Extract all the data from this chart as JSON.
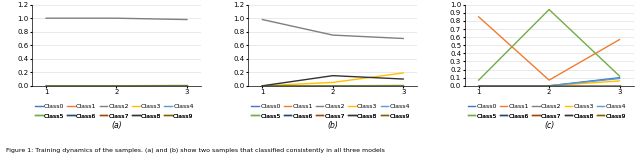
{
  "subplot_a": {
    "x": [
      1,
      2,
      3
    ],
    "lines": [
      {
        "label": "Class0",
        "color": "#4472C4",
        "values": [
          0.0,
          0.0,
          0.0
        ]
      },
      {
        "label": "Class1",
        "color": "#ED7D31",
        "values": [
          0.0,
          0.0,
          0.0
        ]
      },
      {
        "label": "Class2",
        "color": "#7F7F7F",
        "values": [
          1.0,
          1.0,
          0.98
        ]
      },
      {
        "label": "Class3",
        "color": "#FFC000",
        "values": [
          0.0,
          0.0,
          0.0
        ]
      },
      {
        "label": "Class4",
        "color": "#5B9BD5",
        "values": [
          0.0,
          0.0,
          0.0
        ]
      },
      {
        "label": "Class5",
        "color": "#70AD47",
        "values": [
          0.0,
          0.0,
          0.005
        ]
      },
      {
        "label": "Class6",
        "color": "#264478",
        "values": [
          0.0,
          0.0,
          0.0
        ]
      },
      {
        "label": "Class7",
        "color": "#9E480E",
        "values": [
          0.0,
          0.0,
          0.0
        ]
      },
      {
        "label": "Class8",
        "color": "#333333",
        "values": [
          0.0,
          0.0,
          0.0
        ]
      },
      {
        "label": "Class9",
        "color": "#806000",
        "values": [
          0.0,
          0.0,
          0.0
        ]
      }
    ],
    "ylim": [
      0.0,
      1.2
    ],
    "yticks": [
      0.0,
      0.2,
      0.4,
      0.6,
      0.8,
      1.0,
      1.2
    ],
    "xlabel": "(a)"
  },
  "subplot_b": {
    "x": [
      1,
      2,
      3
    ],
    "lines": [
      {
        "label": "Class0",
        "color": "#4472C4",
        "values": [
          0.0,
          0.0,
          0.0
        ]
      },
      {
        "label": "Class1",
        "color": "#ED7D31",
        "values": [
          0.0,
          0.0,
          0.0
        ]
      },
      {
        "label": "Class2",
        "color": "#7F7F7F",
        "values": [
          0.98,
          0.75,
          0.7
        ]
      },
      {
        "label": "Class3",
        "color": "#FFC000",
        "values": [
          0.0,
          0.05,
          0.19
        ]
      },
      {
        "label": "Class4",
        "color": "#5B9BD5",
        "values": [
          0.0,
          0.0,
          0.0
        ]
      },
      {
        "label": "Class5",
        "color": "#70AD47",
        "values": [
          0.0,
          0.0,
          0.005
        ]
      },
      {
        "label": "Class6",
        "color": "#264478",
        "values": [
          0.0,
          0.0,
          0.0
        ]
      },
      {
        "label": "Class7",
        "color": "#9E480E",
        "values": [
          0.0,
          0.0,
          0.0
        ]
      },
      {
        "label": "Class8",
        "color": "#333333",
        "values": [
          0.0,
          0.15,
          0.1
        ]
      },
      {
        "label": "Class9",
        "color": "#806000",
        "values": [
          0.0,
          0.0,
          0.0
        ]
      }
    ],
    "ylim": [
      0.0,
      1.2
    ],
    "yticks": [
      0.0,
      0.2,
      0.4,
      0.6,
      0.8,
      1.0,
      1.2
    ],
    "xlabel": "(b)"
  },
  "subplot_c": {
    "x": [
      1,
      2,
      3
    ],
    "lines": [
      {
        "label": "Class0",
        "color": "#4472C4",
        "values": [
          0.0,
          0.0,
          0.1
        ]
      },
      {
        "label": "Class1",
        "color": "#ED7D31",
        "values": [
          0.85,
          0.07,
          0.57
        ]
      },
      {
        "label": "Class2",
        "color": "#7F7F7F",
        "values": [
          0.0,
          0.0,
          0.0
        ]
      },
      {
        "label": "Class3",
        "color": "#FFC000",
        "values": [
          0.0,
          0.0,
          0.06
        ]
      },
      {
        "label": "Class4",
        "color": "#5B9BD5",
        "values": [
          0.0,
          0.0,
          0.09
        ]
      },
      {
        "label": "Class5",
        "color": "#70AD47",
        "values": [
          0.07,
          0.94,
          0.12
        ]
      },
      {
        "label": "Class6",
        "color": "#264478",
        "values": [
          0.0,
          0.0,
          0.0
        ]
      },
      {
        "label": "Class7",
        "color": "#9E480E",
        "values": [
          0.0,
          0.0,
          0.0
        ]
      },
      {
        "label": "Class8",
        "color": "#333333",
        "values": [
          0.0,
          0.0,
          0.0
        ]
      },
      {
        "label": "Class9",
        "color": "#806000",
        "values": [
          0.0,
          0.0,
          0.0
        ]
      }
    ],
    "ylim": [
      0.0,
      1.0
    ],
    "yticks": [
      0.0,
      0.1,
      0.2,
      0.3,
      0.4,
      0.5,
      0.6,
      0.7,
      0.8,
      0.9,
      1.0
    ],
    "xlabel": "(c)"
  },
  "legend_labels": [
    "Class0",
    "Class1",
    "Class2",
    "Class3",
    "Class4",
    "Class5",
    "Class6",
    "Class7",
    "Class8",
    "Class9"
  ],
  "legend_colors": [
    "#4472C4",
    "#ED7D31",
    "#7F7F7F",
    "#FFC000",
    "#5B9BD5",
    "#70AD47",
    "#264478",
    "#9E480E",
    "#333333",
    "#806000"
  ],
  "caption": "Figure 1: Training dynamics of the samples. (a) and (b) show two samples that classified consistently in all three models",
  "bg_color": "#FFFFFF",
  "grid_color": "#E0E0E0",
  "line_width": 1.0,
  "font_size": 5.0
}
